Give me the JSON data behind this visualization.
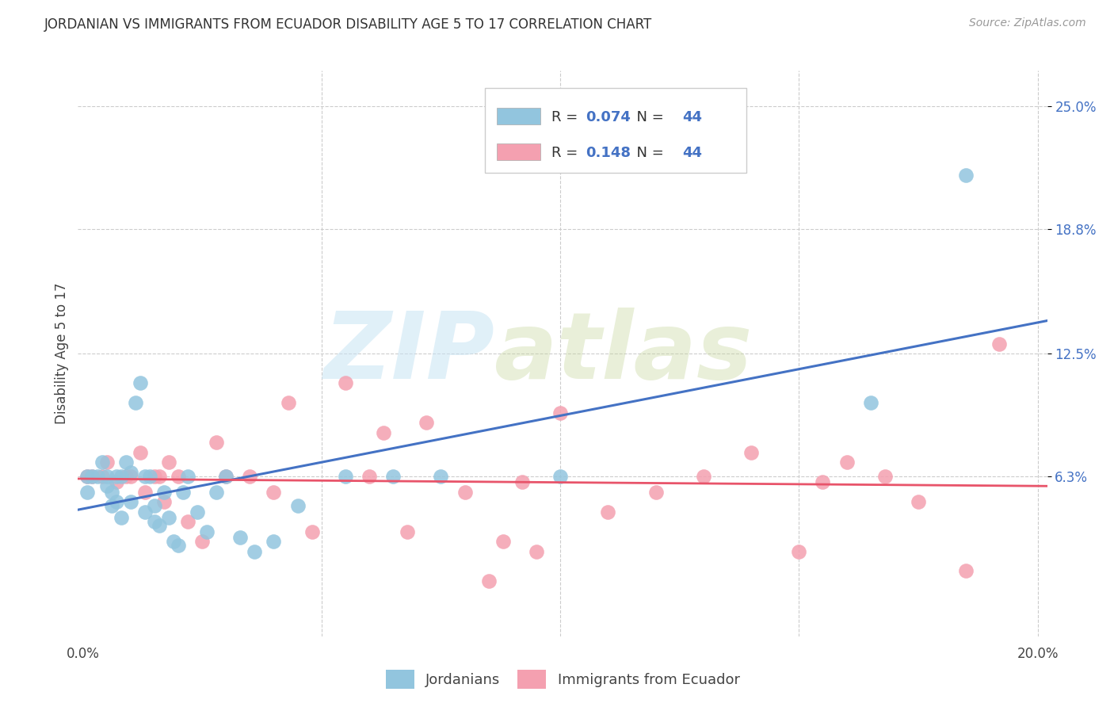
{
  "title": "JORDANIAN VS IMMIGRANTS FROM ECUADOR DISABILITY AGE 5 TO 17 CORRELATION CHART",
  "source": "Source: ZipAtlas.com",
  "ylabel": "Disability Age 5 to 17",
  "xlim": [
    -0.001,
    0.202
  ],
  "ylim": [
    -0.018,
    0.268
  ],
  "ytick_vals": [
    0.063,
    0.125,
    0.188,
    0.25
  ],
  "ytick_labels": [
    "6.3%",
    "12.5%",
    "18.8%",
    "25.0%"
  ],
  "xtick_vals": [
    0.0,
    0.05,
    0.1,
    0.15,
    0.2
  ],
  "xtick_labels": [
    "0.0%",
    "",
    "",
    "",
    "20.0%"
  ],
  "legend1_label": "Jordanians",
  "legend2_label": "Immigrants from Ecuador",
  "R1": 0.074,
  "N1": 44,
  "R2": 0.148,
  "N2": 44,
  "color_jordan": "#92C5DE",
  "color_ecuador": "#F4A0B0",
  "line_color_jordan": "#4472C4",
  "line_color_ecuador": "#E8546A",
  "text_color_label": "#333333",
  "text_color_value": "#4472C4",
  "grid_color": "#CCCCCC",
  "jordan_x": [
    0.001,
    0.001,
    0.002,
    0.003,
    0.004,
    0.005,
    0.005,
    0.006,
    0.006,
    0.007,
    0.007,
    0.008,
    0.008,
    0.009,
    0.01,
    0.01,
    0.011,
    0.012,
    0.013,
    0.013,
    0.014,
    0.015,
    0.015,
    0.016,
    0.017,
    0.018,
    0.019,
    0.02,
    0.021,
    0.022,
    0.024,
    0.026,
    0.028,
    0.03,
    0.033,
    0.036,
    0.04,
    0.045,
    0.055,
    0.065,
    0.075,
    0.1,
    0.165,
    0.185
  ],
  "jordan_y": [
    0.063,
    0.055,
    0.063,
    0.063,
    0.07,
    0.058,
    0.063,
    0.055,
    0.048,
    0.063,
    0.05,
    0.063,
    0.042,
    0.07,
    0.065,
    0.05,
    0.1,
    0.11,
    0.063,
    0.045,
    0.063,
    0.048,
    0.04,
    0.038,
    0.055,
    0.042,
    0.03,
    0.028,
    0.055,
    0.063,
    0.045,
    0.035,
    0.055,
    0.063,
    0.032,
    0.025,
    0.03,
    0.048,
    0.063,
    0.063,
    0.063,
    0.063,
    0.1,
    0.215
  ],
  "ecuador_x": [
    0.001,
    0.002,
    0.004,
    0.005,
    0.007,
    0.009,
    0.01,
    0.012,
    0.013,
    0.015,
    0.016,
    0.017,
    0.018,
    0.02,
    0.022,
    0.025,
    0.028,
    0.03,
    0.035,
    0.04,
    0.043,
    0.048,
    0.055,
    0.06,
    0.063,
    0.068,
    0.072,
    0.08,
    0.085,
    0.088,
    0.092,
    0.095,
    0.1,
    0.11,
    0.12,
    0.13,
    0.14,
    0.15,
    0.155,
    0.16,
    0.168,
    0.175,
    0.185,
    0.192
  ],
  "ecuador_y": [
    0.063,
    0.063,
    0.063,
    0.07,
    0.06,
    0.063,
    0.063,
    0.075,
    0.055,
    0.063,
    0.063,
    0.05,
    0.07,
    0.063,
    0.04,
    0.03,
    0.08,
    0.063,
    0.063,
    0.055,
    0.1,
    0.035,
    0.11,
    0.063,
    0.085,
    0.035,
    0.09,
    0.055,
    0.01,
    0.03,
    0.06,
    0.025,
    0.095,
    0.045,
    0.055,
    0.063,
    0.075,
    0.025,
    0.06,
    0.07,
    0.063,
    0.05,
    0.015,
    0.13
  ]
}
